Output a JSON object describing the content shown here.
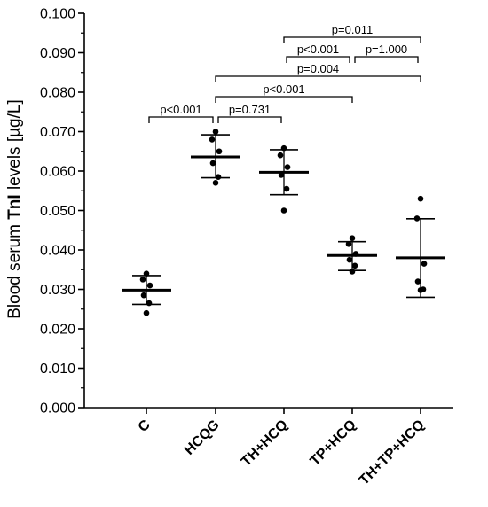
{
  "chart_data": {
    "type": "scatter",
    "ylabel": {
      "prefix": "Blood serum ",
      "bold": "TnI",
      "suffix": " levels [µg/L]"
    },
    "ylim": [
      0,
      0.1
    ],
    "y_ticks": [
      "0.000",
      "0.010",
      "0.020",
      "0.030",
      "0.040",
      "0.050",
      "0.060",
      "0.070",
      "0.080",
      "0.090",
      "0.100"
    ],
    "categories": [
      "C",
      "HCQG",
      "TH+HCQ",
      "TP+HCQ",
      "TH+TP+HCQ"
    ],
    "groups": [
      {
        "category": "C",
        "mean": 0.0298,
        "sd_upper": 0.0335,
        "sd_lower": 0.0262,
        "points": [
          0.034,
          0.0325,
          0.031,
          0.0285,
          0.0265,
          0.024
        ]
      },
      {
        "category": "HCQG",
        "mean": 0.0636,
        "sd_upper": 0.0692,
        "sd_lower": 0.0583,
        "points": [
          0.07,
          0.068,
          0.065,
          0.062,
          0.0585,
          0.057
        ]
      },
      {
        "category": "TH+HCQ",
        "mean": 0.0597,
        "sd_upper": 0.0654,
        "sd_lower": 0.054,
        "points": [
          0.0658,
          0.064,
          0.061,
          0.059,
          0.0555,
          0.05
        ]
      },
      {
        "category": "TP+HCQ",
        "mean": 0.0386,
        "sd_upper": 0.0421,
        "sd_lower": 0.0348,
        "points": [
          0.043,
          0.0415,
          0.039,
          0.0375,
          0.036,
          0.0345
        ]
      },
      {
        "category": "TH+TP+HCQ",
        "mean": 0.038,
        "sd_upper": 0.0479,
        "sd_lower": 0.028,
        "points": [
          0.053,
          0.048,
          0.0365,
          0.032,
          0.03,
          0.0298
        ]
      }
    ],
    "comparisons": [
      {
        "from": "C",
        "to": "HCQG",
        "label": "p<0.001"
      },
      {
        "from": "HCQG",
        "to": "TH+HCQ",
        "label": "p=0.731"
      },
      {
        "from": "HCQG",
        "to": "TP+HCQ",
        "label": "p<0.001"
      },
      {
        "from": "HCQG",
        "to": "TH+TP+HCQ",
        "label": "p=0.004"
      },
      {
        "from": "TH+HCQ",
        "to": "TP+HCQ",
        "label": "p<0.001"
      },
      {
        "from": "TP+HCQ",
        "to": "TH+TP+HCQ",
        "label": "p=1.000"
      },
      {
        "from": "TH+HCQ",
        "to": "TH+TP+HCQ",
        "label": "p=0.011"
      }
    ]
  }
}
